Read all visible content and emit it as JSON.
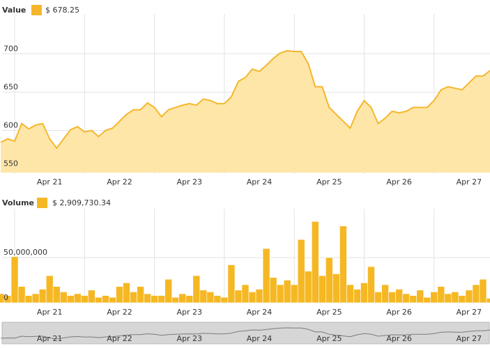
{
  "chart_data": [
    {
      "type": "area",
      "legend_title": "Value",
      "legend_value": "$ 678.25",
      "x": [
        20.3,
        20.4,
        20.5,
        20.6,
        20.7,
        20.8,
        20.9,
        21.0,
        21.1,
        21.2,
        21.3,
        21.4,
        21.5,
        21.6,
        21.7,
        21.8,
        21.9,
        22.0,
        22.1,
        22.2,
        22.3,
        22.4,
        22.5,
        22.6,
        22.7,
        22.8,
        22.9,
        23.0,
        23.1,
        23.2,
        23.3,
        23.4,
        23.5,
        23.6,
        23.7,
        23.8,
        23.9,
        24.0,
        24.1,
        24.2,
        24.3,
        24.4,
        24.5,
        24.6,
        24.7,
        24.8,
        24.9,
        25.0,
        25.1,
        25.2,
        25.3,
        25.4,
        25.5,
        25.6,
        25.7,
        25.8,
        25.9,
        26.0,
        26.1,
        26.2,
        26.3,
        26.4,
        26.5,
        26.6,
        26.7,
        26.8,
        26.9,
        27.0,
        27.1,
        27.2,
        27.3
      ],
      "series": [
        {
          "name": "Value",
          "color": "#f5b62c",
          "fill": "#fde6a8",
          "values": [
            584.5,
            589,
            586,
            609,
            602,
            607,
            609,
            589,
            577,
            589,
            601,
            605,
            598,
            600,
            592,
            600,
            603,
            612,
            621,
            627,
            627,
            636,
            630,
            618,
            627,
            630,
            633,
            635,
            633,
            641,
            639,
            635,
            635,
            644,
            664,
            669,
            680,
            677,
            685,
            694,
            701,
            704,
            703,
            703,
            687,
            657,
            657,
            630,
            621,
            612,
            603,
            625,
            639,
            630,
            609,
            616,
            625,
            623,
            625,
            630,
            630,
            630,
            639,
            653,
            657,
            655,
            653,
            662,
            671,
            671,
            678
          ]
        }
      ],
      "xlim": [
        20.32,
        27.3
      ],
      "xticks": [
        {
          "value": 21,
          "label": "Apr 21"
        },
        {
          "value": 22,
          "label": "Apr 22"
        },
        {
          "value": 23,
          "label": "Apr 23"
        },
        {
          "value": 24,
          "label": "Apr 24"
        },
        {
          "value": 25,
          "label": "Apr 25"
        },
        {
          "value": 26,
          "label": "Apr 26"
        },
        {
          "value": 27,
          "label": "Apr 27"
        }
      ],
      "ylim": [
        545,
        752
      ],
      "yticks": [
        550,
        600,
        650,
        700
      ],
      "grid": true
    },
    {
      "type": "bar",
      "legend_title": "Volume",
      "legend_value": "$ 2,909,730.34",
      "x": [
        20.3,
        20.4,
        20.5,
        20.6,
        20.7,
        20.8,
        20.9,
        21.0,
        21.1,
        21.2,
        21.3,
        21.4,
        21.5,
        21.6,
        21.7,
        21.8,
        21.9,
        22.0,
        22.1,
        22.2,
        22.3,
        22.4,
        22.5,
        22.6,
        22.7,
        22.8,
        22.9,
        23.0,
        23.1,
        23.2,
        23.3,
        23.4,
        23.5,
        23.6,
        23.7,
        23.8,
        23.9,
        24.0,
        24.1,
        24.2,
        24.3,
        24.4,
        24.5,
        24.6,
        24.7,
        24.8,
        24.9,
        25.0,
        25.1,
        25.2,
        25.3,
        25.4,
        25.5,
        25.6,
        25.7,
        25.8,
        25.9,
        26.0,
        26.1,
        26.2,
        26.3,
        26.4,
        26.5,
        26.6,
        26.7,
        26.8,
        26.9,
        27.0,
        27.1,
        27.2,
        27.3
      ],
      "series": [
        {
          "name": "Volume",
          "color": "#f5b824",
          "values": [
            10000000,
            8000000,
            51000000,
            18000000,
            8000000,
            10000000,
            15000000,
            30000000,
            18000000,
            12000000,
            8000000,
            10000000,
            8000000,
            14000000,
            6000000,
            8000000,
            6000000,
            18000000,
            22000000,
            12000000,
            18000000,
            10000000,
            8000000,
            8000000,
            26000000,
            6000000,
            10000000,
            8000000,
            30000000,
            14000000,
            12000000,
            8000000,
            6000000,
            42000000,
            14000000,
            20000000,
            12000000,
            15000000,
            60000000,
            28000000,
            20000000,
            25000000,
            20000000,
            70000000,
            35000000,
            90000000,
            30000000,
            50000000,
            32000000,
            85000000,
            20000000,
            15000000,
            22000000,
            40000000,
            12000000,
            20000000,
            12000000,
            15000000,
            10000000,
            8000000,
            14000000,
            6000000,
            12000000,
            18000000,
            10000000,
            12000000,
            8000000,
            14000000,
            20000000,
            26000000,
            5000000
          ]
        }
      ],
      "xlim": [
        20.32,
        27.3
      ],
      "xticks": [
        {
          "value": 21,
          "label": "Apr 21"
        },
        {
          "value": 22,
          "label": "Apr 22"
        },
        {
          "value": 23,
          "label": "Apr 23"
        },
        {
          "value": 24,
          "label": "Apr 24"
        },
        {
          "value": 25,
          "label": "Apr 25"
        },
        {
          "value": 26,
          "label": "Apr 26"
        },
        {
          "value": 27,
          "label": "Apr 27"
        }
      ],
      "ylim": [
        0,
        104000000
      ],
      "yticks": [
        0,
        {
          "value": 50000000,
          "label": "50,000,000"
        }
      ],
      "grid": true
    }
  ]
}
